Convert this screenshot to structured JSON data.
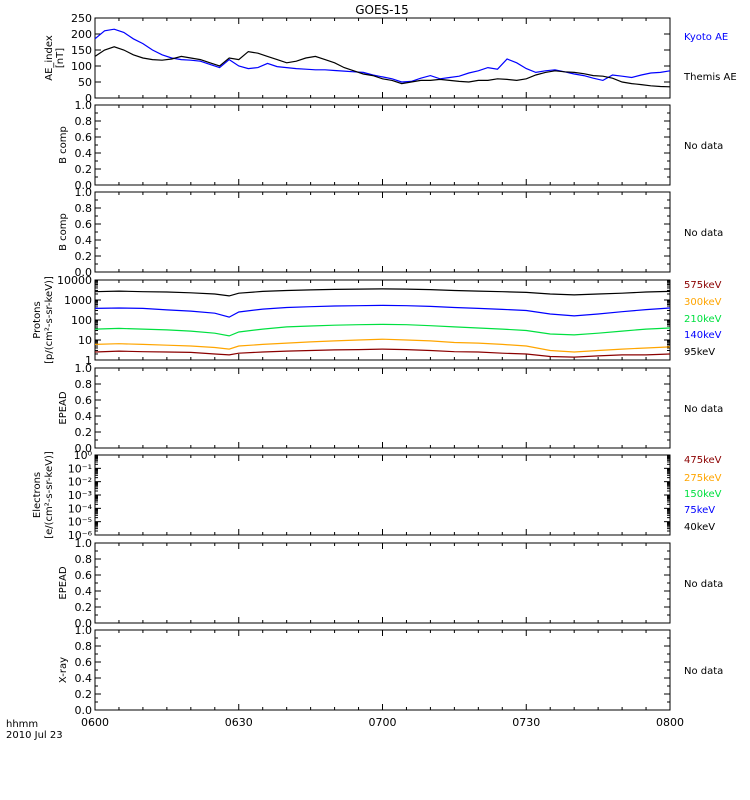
{
  "title": "GOES-15",
  "x_axis": {
    "ticks": [
      "0600",
      "0630",
      "0700",
      "0730",
      "0800"
    ],
    "ticks_min": [
      0,
      30,
      60,
      90,
      120
    ],
    "footer_line1": "hhmm",
    "footer_line2": "2010 Jul 23"
  },
  "colors": {
    "kyoto": "#0000ff",
    "themis": "#000000",
    "p575": "#8b0000",
    "p300": "#ffa500",
    "p210": "#00e040",
    "p140": "#0000ff",
    "p95": "#000000"
  },
  "panels": {
    "ae": {
      "ylabel_1": "AE_index",
      "ylabel_2": "[nT]",
      "ticks": [
        "0",
        "50",
        "100",
        "150",
        "200",
        "250"
      ],
      "legend": [
        "Kyoto AE",
        "Themis AE"
      ]
    },
    "bcomp1": {
      "ylabel": "B comp",
      "ticks": [
        "0.0",
        "0.2",
        "0.4",
        "0.6",
        "0.8",
        "1.0"
      ],
      "note": "No data"
    },
    "bcomp2": {
      "ylabel": "B comp",
      "ticks": [
        "0.0",
        "0.2",
        "0.4",
        "0.6",
        "0.8",
        "1.0"
      ],
      "note": "No data"
    },
    "protons": {
      "ylabel_1": "Protons",
      "ylabel_2": "[p/(cm²-s-sr-keV)]",
      "ticks": [
        "1",
        "10",
        "100",
        "1000",
        "10000"
      ],
      "legend": [
        "575keV",
        "300keV",
        "210keV",
        "140keV",
        "95keV"
      ]
    },
    "epead1": {
      "ylabel": "EPEAD",
      "ticks": [
        "0.0",
        "0.2",
        "0.4",
        "0.6",
        "0.8",
        "1.0"
      ],
      "note": "No data"
    },
    "electrons": {
      "ylabel_1": "Electrons",
      "ylabel_2": "[e/(cm²-s-sr-keV)]",
      "ticks": [
        "10⁰",
        "10⁻¹",
        "10⁻²",
        "10⁻³",
        "10⁻⁴",
        "10⁻⁵",
        "10⁻⁶"
      ],
      "legend": [
        "475keV",
        "275keV",
        "150keV",
        "75keV",
        "40keV"
      ]
    },
    "epead2": {
      "ylabel": "EPEAD",
      "ticks": [
        "0.0",
        "0.2",
        "0.4",
        "0.6",
        "0.8",
        "1.0"
      ],
      "note": "No data"
    },
    "xray": {
      "ylabel": "X-ray",
      "ticks": [
        "0.0",
        "0.2",
        "0.4",
        "0.6",
        "0.8",
        "1.0"
      ],
      "note": "No data"
    }
  },
  "chart_data": [
    {
      "type": "line",
      "panel": "ae",
      "x_unit": "minutes after 0600 UT",
      "ylim": [
        0,
        250
      ],
      "series": [
        {
          "name": "Kyoto AE",
          "x": [
            0,
            2,
            4,
            6,
            8,
            10,
            12,
            14,
            16,
            18,
            20,
            22,
            24,
            26,
            28,
            30,
            32,
            34,
            36,
            38,
            40,
            42,
            44,
            46,
            48,
            50,
            52,
            54,
            56,
            58,
            60,
            62,
            64,
            66,
            68,
            70,
            72,
            74,
            76,
            78,
            80,
            82,
            84,
            86,
            88,
            90,
            92,
            94,
            96,
            98,
            100,
            102,
            104,
            106,
            108,
            110,
            112,
            114,
            116,
            118,
            120
          ],
          "values": [
            185,
            210,
            215,
            205,
            185,
            170,
            150,
            135,
            125,
            120,
            118,
            115,
            105,
            95,
            120,
            100,
            92,
            95,
            108,
            98,
            95,
            92,
            90,
            88,
            88,
            86,
            84,
            82,
            80,
            72,
            66,
            60,
            50,
            52,
            62,
            70,
            60,
            64,
            68,
            78,
            85,
            95,
            90,
            122,
            110,
            92,
            80,
            85,
            88,
            82,
            75,
            70,
            62,
            55,
            72,
            68,
            64,
            72,
            78,
            80,
            85
          ]
        },
        {
          "name": "Themis AE",
          "x": [
            0,
            2,
            4,
            6,
            8,
            10,
            12,
            14,
            16,
            18,
            20,
            22,
            24,
            26,
            28,
            30,
            32,
            34,
            36,
            38,
            40,
            42,
            44,
            46,
            48,
            50,
            52,
            54,
            56,
            58,
            60,
            62,
            64,
            66,
            68,
            70,
            72,
            74,
            76,
            78,
            80,
            82,
            84,
            86,
            88,
            90,
            92,
            94,
            96,
            98,
            100,
            102,
            104,
            106,
            108,
            110,
            112,
            114,
            116,
            118,
            120
          ],
          "values": [
            130,
            150,
            160,
            150,
            135,
            125,
            120,
            118,
            122,
            130,
            125,
            120,
            110,
            100,
            125,
            120,
            145,
            140,
            130,
            120,
            110,
            115,
            125,
            130,
            120,
            110,
            95,
            85,
            75,
            70,
            60,
            55,
            45,
            50,
            55,
            55,
            58,
            55,
            52,
            50,
            55,
            55,
            60,
            58,
            55,
            60,
            72,
            80,
            85,
            82,
            80,
            76,
            70,
            68,
            62,
            50,
            45,
            42,
            38,
            36,
            35
          ]
        }
      ]
    },
    {
      "type": "line",
      "panel": "protons",
      "yscale": "log",
      "ylim": [
        1,
        10000
      ],
      "x_unit": "minutes after 0600 UT",
      "series": [
        {
          "name": "575keV",
          "x": [
            0,
            5,
            10,
            15,
            20,
            25,
            28,
            30,
            35,
            40,
            45,
            50,
            55,
            60,
            65,
            70,
            75,
            80,
            85,
            90,
            95,
            100,
            105,
            110,
            115,
            120
          ],
          "values": [
            2.5,
            2.8,
            2.6,
            2.5,
            2.4,
            2.0,
            1.8,
            2.2,
            2.5,
            2.8,
            3.0,
            3.2,
            3.3,
            3.5,
            3.3,
            3.0,
            2.6,
            2.5,
            2.2,
            2.0,
            1.5,
            1.4,
            1.6,
            1.8,
            1.8,
            2.0
          ]
        },
        {
          "name": "300keV",
          "x": [
            0,
            5,
            10,
            15,
            20,
            25,
            28,
            30,
            35,
            40,
            45,
            50,
            55,
            60,
            65,
            70,
            75,
            80,
            85,
            90,
            95,
            100,
            105,
            110,
            115,
            120
          ],
          "values": [
            6,
            6.5,
            6,
            5.5,
            5,
            4.2,
            3.5,
            5,
            6,
            7,
            8,
            9,
            10,
            11,
            10,
            9,
            7.5,
            7,
            6,
            5,
            3,
            2.5,
            3,
            3.5,
            4,
            4.5
          ]
        },
        {
          "name": "210keV",
          "x": [
            0,
            5,
            10,
            15,
            20,
            25,
            28,
            30,
            35,
            40,
            45,
            50,
            55,
            60,
            65,
            70,
            75,
            80,
            85,
            90,
            95,
            100,
            105,
            110,
            115,
            120
          ],
          "values": [
            35,
            38,
            35,
            32,
            28,
            22,
            16,
            25,
            35,
            45,
            50,
            55,
            58,
            60,
            58,
            52,
            45,
            40,
            35,
            30,
            20,
            18,
            22,
            28,
            35,
            40
          ]
        },
        {
          "name": "140keV",
          "x": [
            0,
            5,
            10,
            15,
            20,
            25,
            28,
            30,
            35,
            40,
            45,
            50,
            55,
            60,
            65,
            70,
            75,
            80,
            85,
            90,
            95,
            100,
            105,
            110,
            115,
            120
          ],
          "values": [
            380,
            400,
            380,
            320,
            280,
            220,
            140,
            250,
            350,
            420,
            460,
            500,
            520,
            540,
            520,
            480,
            420,
            380,
            340,
            300,
            200,
            160,
            200,
            260,
            330,
            400
          ]
        },
        {
          "name": "95keV",
          "x": [
            0,
            5,
            10,
            15,
            20,
            25,
            28,
            30,
            35,
            40,
            45,
            50,
            55,
            60,
            65,
            70,
            75,
            80,
            85,
            90,
            95,
            100,
            105,
            110,
            115,
            120
          ],
          "values": [
            2600,
            2800,
            2600,
            2500,
            2300,
            2000,
            1600,
            2200,
            2700,
            3000,
            3200,
            3400,
            3500,
            3600,
            3500,
            3300,
            3000,
            2800,
            2600,
            2400,
            2000,
            1800,
            2000,
            2200,
            2500,
            2700
          ]
        }
      ]
    },
    {
      "type": "line",
      "panel": "electrons",
      "yscale": "log",
      "ylim": [
        1e-06,
        1
      ],
      "series": []
    }
  ]
}
